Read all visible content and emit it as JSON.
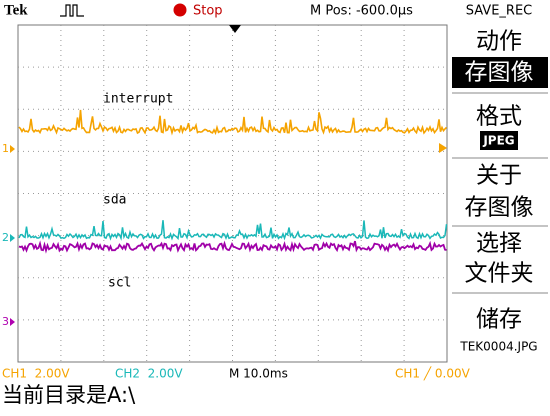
{
  "header": {
    "brand": "Tek",
    "status": "Stop",
    "position": "M Pos: -600.0µs",
    "menu_title": "SAVE_REC"
  },
  "menu": {
    "items": [
      "动作",
      "存图像",
      "格式",
      "JPEG",
      "关于",
      "存图像",
      "选择",
      "文件夹",
      "储存",
      "TEK0004.JPG"
    ]
  },
  "traces": [
    {
      "label": "interrupt",
      "marker": "1"
    },
    {
      "label": "sda",
      "marker": "2"
    },
    {
      "label": "scl",
      "marker": "3"
    }
  ],
  "footer": {
    "ch1": "CH1  2.00V",
    "ch2": "CH2  2.00V",
    "timebase": "M 10.0ms",
    "trigger": "CH1 ╱ 0.00V",
    "directory": "当前目录是A:\\"
  }
}
